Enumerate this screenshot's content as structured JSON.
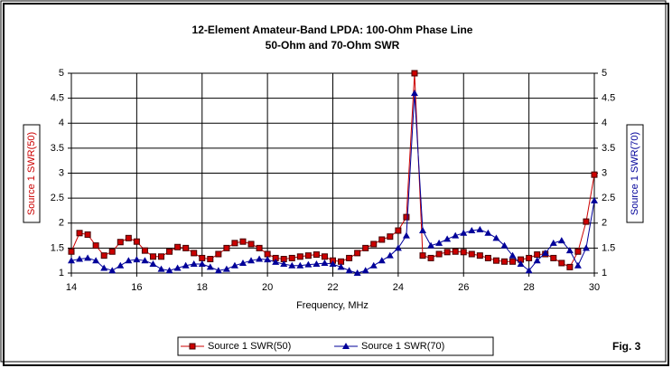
{
  "chart_data": {
    "type": "line",
    "title": "12-Element Amateur-Band LPDA: 100-Ohm Phase Line",
    "subtitle": "50-Ohm and 70-Ohm SWR",
    "x_label": "Frequency, MHz",
    "y_label": "Source 1 SWR(50)",
    "y2_label": "Source 1 SWR(70)",
    "annotation": "Fig. 3",
    "x": [
      14,
      14.25,
      14.5,
      14.75,
      15,
      15.25,
      15.5,
      15.75,
      16,
      16.25,
      16.5,
      16.75,
      17,
      17.25,
      17.5,
      17.75,
      18,
      18.25,
      18.5,
      18.75,
      19,
      19.25,
      19.5,
      19.75,
      20,
      20.25,
      20.5,
      20.75,
      21,
      21.25,
      21.5,
      21.75,
      22,
      22.25,
      22.5,
      22.75,
      23,
      23.25,
      23.5,
      23.75,
      24,
      24.25,
      24.5,
      24.75,
      25,
      25.25,
      25.5,
      25.75,
      26,
      26.25,
      26.5,
      26.75,
      27,
      27.25,
      27.5,
      27.75,
      28,
      28.25,
      28.5,
      28.75,
      29,
      29.25,
      29.5,
      29.75,
      30
    ],
    "series": [
      {
        "name": "Source 1 SWR(50)",
        "color": "#cc0000",
        "marker": "square",
        "values": [
          1.43,
          1.8,
          1.77,
          1.55,
          1.35,
          1.43,
          1.62,
          1.7,
          1.63,
          1.45,
          1.33,
          1.33,
          1.43,
          1.52,
          1.5,
          1.4,
          1.3,
          1.28,
          1.38,
          1.5,
          1.6,
          1.63,
          1.58,
          1.5,
          1.38,
          1.3,
          1.28,
          1.3,
          1.33,
          1.35,
          1.37,
          1.33,
          1.25,
          1.23,
          1.3,
          1.4,
          1.5,
          1.58,
          1.67,
          1.73,
          1.85,
          2.12,
          5,
          1.35,
          1.3,
          1.38,
          1.42,
          1.43,
          1.42,
          1.38,
          1.35,
          1.3,
          1.25,
          1.23,
          1.23,
          1.27,
          1.3,
          1.37,
          1.38,
          1.3,
          1.2,
          1.12,
          1.43,
          2.03,
          2.97
        ]
      },
      {
        "name": "Source 1 SWR(70)",
        "color": "#000099",
        "marker": "triangle",
        "axis": "y2",
        "values": [
          1.25,
          1.28,
          1.3,
          1.25,
          1.1,
          1.05,
          1.15,
          1.25,
          1.27,
          1.25,
          1.18,
          1.08,
          1.05,
          1.1,
          1.15,
          1.18,
          1.18,
          1.12,
          1.05,
          1.08,
          1.15,
          1.2,
          1.25,
          1.28,
          1.27,
          1.22,
          1.18,
          1.15,
          1.15,
          1.17,
          1.18,
          1.2,
          1.18,
          1.12,
          1.05,
          1.0,
          1.05,
          1.15,
          1.25,
          1.35,
          1.5,
          1.75,
          4.6,
          1.85,
          1.55,
          1.6,
          1.68,
          1.75,
          1.8,
          1.85,
          1.87,
          1.8,
          1.7,
          1.55,
          1.35,
          1.18,
          1.05,
          1.25,
          1.4,
          1.6,
          1.65,
          1.45,
          1.15,
          1.5,
          2.45
        ]
      }
    ],
    "xlim": [
      14,
      30
    ],
    "xticks": [
      14,
      16,
      18,
      20,
      22,
      24,
      26,
      28,
      30
    ],
    "ylim": [
      1,
      5
    ],
    "yticks": [
      1,
      1.5,
      2,
      2.5,
      3,
      3.5,
      4,
      4.5,
      5
    ],
    "y2lim": [
      1,
      5
    ],
    "y2ticks": [
      1,
      1.5,
      2,
      2.5,
      3,
      3.5,
      4,
      4.5,
      5
    ],
    "grid": true,
    "legend": "bottom"
  }
}
